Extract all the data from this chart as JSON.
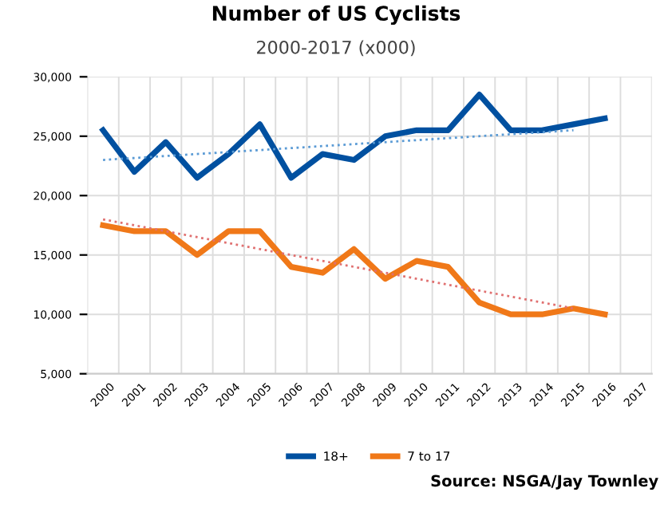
{
  "chart_data": {
    "type": "line",
    "title": "Number of US Cyclists",
    "subtitle": "2000-2017 (x000)",
    "categories": [
      "2000",
      "2001",
      "2002",
      "2003",
      "2004",
      "2005",
      "2006",
      "2007",
      "2008",
      "2009",
      "2010",
      "2011",
      "2012",
      "2013",
      "2014",
      "2015",
      "2016",
      "2017"
    ],
    "series": [
      {
        "name": "18+",
        "color": "#0050a0",
        "values": [
          25500,
          22000,
          24500,
          21500,
          23500,
          26000,
          21500,
          23500,
          23000,
          25000,
          25500,
          25500,
          28500,
          25500,
          25500,
          26000,
          26500,
          null
        ]
      },
      {
        "name": "7 to 17",
        "color": "#f07818",
        "values": [
          17500,
          17000,
          17000,
          15000,
          17000,
          17000,
          14000,
          13500,
          15500,
          13000,
          14500,
          14000,
          11000,
          10000,
          10000,
          10500,
          10000,
          null
        ]
      },
      {
        "type": "line",
        "color": "#5b9bd5",
        "line_style": "dotted",
        "values": [
          23000,
          null,
          null,
          null,
          null,
          null,
          null,
          null,
          null,
          null,
          null,
          null,
          null,
          null,
          null,
          25500,
          null,
          null
        ]
      },
      {
        "type": "line",
        "color": "#e07070",
        "line_style": "dotted",
        "values": [
          18000,
          null,
          null,
          null,
          null,
          null,
          null,
          null,
          null,
          null,
          null,
          null,
          null,
          null,
          null,
          10500,
          null,
          null
        ]
      }
    ],
    "ylim": [
      5000,
      30000
    ],
    "yticks": [
      {
        "value": 5000,
        "label": "5,000"
      },
      {
        "value": 10000,
        "label": "10,000"
      },
      {
        "value": 15000,
        "label": "15,000"
      },
      {
        "value": 20000,
        "label": "20,000"
      },
      {
        "value": 25000,
        "label": "25,000"
      },
      {
        "value": 30000,
        "label": "30,000"
      }
    ],
    "grid": true,
    "legend": "bottom",
    "marker": "none",
    "line_style": "solid",
    "annotations": [
      "Source: NSGA/Jay Townley"
    ]
  }
}
